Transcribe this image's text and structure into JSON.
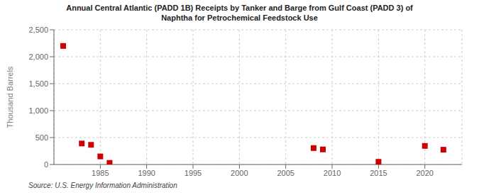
{
  "chart_data": {
    "type": "scatter",
    "title": "Annual Central Atlantic (PADD 1B) Receipts by Tanker and Barge from Gulf Coast (PADD 3) of\nNaphtha for Petrochemical Feedstock Use",
    "ylabel": "Thousand Barrels",
    "annotation": "Source: U.S. Energy Information Administration",
    "x": [
      1981,
      1983,
      1984,
      1985,
      1986,
      2008,
      2009,
      2015,
      2020,
      2022
    ],
    "values": [
      2200,
      390,
      365,
      150,
      30,
      305,
      280,
      50,
      345,
      275
    ],
    "color": "#cc0000",
    "marker": "square",
    "xlim": [
      1980,
      2024
    ],
    "ylim": [
      0,
      2500
    ],
    "xticks": [
      1985,
      1990,
      1995,
      2000,
      2005,
      2010,
      2015,
      2020
    ],
    "yticks": [
      0,
      500,
      {
        "value": 1000,
        "label": "1,000"
      },
      {
        "value": 1500,
        "label": "1,500"
      },
      {
        "value": 2000,
        "label": "2,000"
      },
      {
        "value": 2500,
        "label": "2,500"
      }
    ],
    "grid": true
  }
}
